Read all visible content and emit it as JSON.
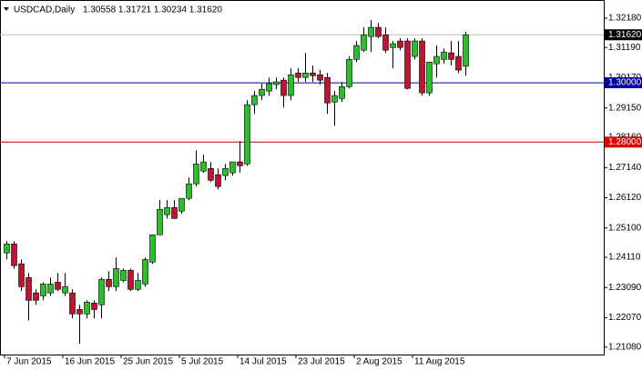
{
  "chart_data": {
    "type": "candlestick",
    "title": "USDCAD,Daily",
    "ohlc_header": "1.30558 1.31721 1.30234 1.31620",
    "categories": [
      "7 Jun 2015",
      null,
      null,
      null,
      null,
      null,
      null,
      null,
      "16 Jun 2015",
      null,
      null,
      null,
      null,
      null,
      null,
      null,
      "25 Jun 2015",
      null,
      null,
      null,
      null,
      null,
      null,
      null,
      "5 Jul 2015",
      null,
      null,
      null,
      null,
      null,
      null,
      null,
      "14 Jul 2015",
      null,
      null,
      null,
      null,
      null,
      null,
      null,
      "23 Jul 2015",
      null,
      null,
      null,
      null,
      null,
      null,
      null,
      "2 Aug 2015",
      null,
      null,
      null,
      null,
      null,
      null,
      null,
      "11 Aug 2015",
      null,
      null,
      null,
      null,
      null,
      null,
      null
    ],
    "open": [
      1.2426,
      1.2456,
      1.2389,
      1.2343,
      1.2291,
      1.2281,
      1.2291,
      1.2327,
      1.2291,
      1.2291,
      1.2235,
      1.222,
      1.2257,
      1.2251,
      1.2337,
      1.2312,
      1.2333,
      1.2367,
      1.2303,
      1.2321,
      1.2395,
      1.2487,
      1.2555,
      1.2579,
      1.2567,
      1.261,
      1.2659,
      1.2702,
      1.2711,
      1.269,
      1.2687,
      1.2696,
      1.2733,
      1.2726,
      1.2926,
      1.2957,
      1.2972,
      1.2994,
      1.3009,
      1.2957,
      1.3033,
      1.3018,
      1.3033,
      1.3027,
      1.3018,
      1.2935,
      1.2947,
      1.2987,
      1.3079,
      1.311,
      1.3156,
      1.3187,
      1.3162,
      1.3119,
      1.3141,
      1.3141,
      1.3089,
      1.3141,
      1.2966,
      1.3064,
      1.3079,
      1.3101,
      1.3089,
      1.30558
    ],
    "high": [
      1.2466,
      1.2466,
      1.2404,
      1.2358,
      1.2303,
      1.2327,
      1.2343,
      1.2358,
      1.2358,
      1.2303,
      1.2251,
      1.2266,
      1.2266,
      1.2343,
      1.2364,
      1.241,
      1.2373,
      1.2373,
      1.2358,
      1.241,
      1.2487,
      1.2604,
      1.2604,
      1.2604,
      1.261,
      1.268,
      1.2772,
      1.2757,
      1.2733,
      1.2711,
      1.2726,
      1.2733,
      1.2803,
      1.2941,
      1.2972,
      1.2997,
      1.3018,
      1.3018,
      1.3018,
      1.3049,
      1.3049,
      1.3101,
      1.3058,
      1.3043,
      1.3033,
      1.2972,
      1.3003,
      1.3089,
      1.3141,
      1.3187,
      1.3212,
      1.3202,
      1.3187,
      1.3141,
      1.315,
      1.315,
      1.315,
      1.315,
      1.307,
      1.3126,
      1.3116,
      1.3141,
      1.3141,
      1.31721
    ],
    "low": [
      1.2404,
      1.2373,
      1.2297,
      1.2198,
      1.2251,
      1.2266,
      1.2281,
      1.2297,
      1.2281,
      1.2205,
      1.2119,
      1.2205,
      1.2205,
      1.2205,
      1.2297,
      1.2297,
      1.2327,
      1.2297,
      1.2297,
      1.2312,
      1.2389,
      1.2487,
      1.2542,
      1.2542,
      1.2558,
      1.2604,
      1.265,
      1.2696,
      1.2665,
      1.264,
      1.2671,
      1.2687,
      1.2696,
      1.272,
      1.2895,
      1.2941,
      1.2957,
      1.2978,
      1.2917,
      1.2941,
      1.3003,
      1.3003,
      1.3003,
      1.2994,
      1.2895,
      1.2855,
      1.2935,
      1.2981,
      1.307,
      1.3104,
      1.3104,
      1.315,
      1.3101,
      1.3049,
      1.311,
      1.2978,
      1.3079,
      1.2957,
      1.2957,
      1.3018,
      1.3064,
      1.3058,
      1.3033,
      1.30234
    ],
    "close": [
      1.2456,
      1.2383,
      1.2312,
      1.2266,
      1.2266,
      1.2321,
      1.2321,
      1.2303,
      1.2312,
      1.222,
      1.222,
      1.226,
      1.2235,
      1.2337,
      1.2312,
      1.2373,
      1.2367,
      1.2303,
      1.2333,
      1.2404,
      1.2487,
      1.2573,
      1.2579,
      1.2542,
      1.261,
      1.2659,
      1.2726,
      1.2733,
      1.2671,
      1.265,
      1.2711,
      1.2733,
      1.272,
      1.2926,
      1.2957,
      1.2978,
      1.2997,
      1.3003,
      1.2957,
      1.3027,
      1.3018,
      1.3033,
      1.3024,
      1.3009,
      1.2932,
      1.2957,
      1.2987,
      1.3079,
      1.3126,
      1.3162,
      1.3187,
      1.3156,
      1.311,
      1.3132,
      1.3119,
      1.2981,
      1.3141,
      1.2966,
      1.307,
      1.3089,
      1.3104,
      1.3079,
      1.3043,
      1.3162
    ],
    "up_color": "#22c322",
    "down_color": "#c8102e",
    "ylim": [
      1.2083,
      1.3264
    ],
    "yticks": [
      {
        "value": 1.2108,
        "label": "1.21080"
      },
      {
        "value": 1.2207,
        "label": "1.22070"
      },
      {
        "value": 1.2309,
        "label": "1.23090"
      },
      {
        "value": 1.2411,
        "label": "1.24110"
      },
      {
        "value": 1.251,
        "label": "1.25100"
      },
      {
        "value": 1.2612,
        "label": "1.26120"
      },
      {
        "value": 1.2714,
        "label": "1.27140"
      },
      {
        "value": 1.2816,
        "label": "1.28160"
      },
      {
        "value": 1.2915,
        "label": "1.29150"
      },
      {
        "value": 1.3017,
        "label": "1.30170"
      },
      {
        "value": 1.3119,
        "label": "1.31190"
      },
      {
        "value": 1.3218,
        "label": "1.32180"
      }
    ],
    "levels": [
      {
        "value": 1.3162,
        "label": "1.31620",
        "color": "#c0c0c0",
        "label_background": "#000000"
      },
      {
        "value": 1.3,
        "label": "1.30000",
        "color": "#0000a0",
        "label_background": "#0000a0"
      },
      {
        "value": 1.28,
        "label": "1.28000",
        "color": "#c00000",
        "label_background": "#e00000"
      }
    ]
  }
}
